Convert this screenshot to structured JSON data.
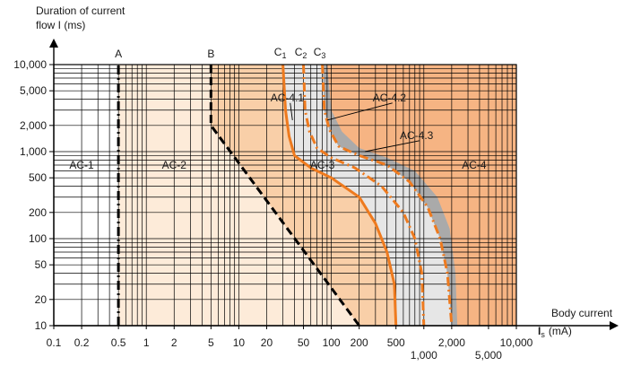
{
  "chart_data": {
    "type": "line",
    "xscale": "log",
    "yscale": "log",
    "xlim": [
      0.1,
      10000
    ],
    "ylim": [
      10,
      10000
    ],
    "ylabel": [
      "Duration of current",
      "flow I (ms)"
    ],
    "xlabel": [
      "Body current",
      "I",
      "s",
      "(mA)"
    ],
    "x_ticks": [
      {
        "value": 0.1,
        "label": "0.1",
        "row": 0
      },
      {
        "value": 0.2,
        "label": "0.2",
        "row": 0
      },
      {
        "value": 0.5,
        "label": "0.5",
        "row": 0
      },
      {
        "value": 1,
        "label": "1",
        "row": 0
      },
      {
        "value": 2,
        "label": "2",
        "row": 0
      },
      {
        "value": 5,
        "label": "5",
        "row": 0
      },
      {
        "value": 10,
        "label": "10",
        "row": 0
      },
      {
        "value": 20,
        "label": "20",
        "row": 0
      },
      {
        "value": 50,
        "label": "50",
        "row": 0
      },
      {
        "value": 100,
        "label": "100",
        "row": 0
      },
      {
        "value": 200,
        "label": "200",
        "row": 0
      },
      {
        "value": 500,
        "label": "500",
        "row": 0
      },
      {
        "value": 1000,
        "label": "1,000",
        "row": 1
      },
      {
        "value": 2000,
        "label": "2,000",
        "row": 0
      },
      {
        "value": 5000,
        "label": "5,000",
        "row": 1
      },
      {
        "value": 10000,
        "label": "10,000",
        "row": 0
      }
    ],
    "y_ticks": [
      {
        "value": 10,
        "label": "10"
      },
      {
        "value": 20,
        "label": "20"
      },
      {
        "value": 50,
        "label": "50"
      },
      {
        "value": 100,
        "label": "100"
      },
      {
        "value": 200,
        "label": "200"
      },
      {
        "value": 500,
        "label": "500"
      },
      {
        "value": 1000,
        "label": "1,000"
      },
      {
        "value": 2000,
        "label": "2,000"
      },
      {
        "value": 5000,
        "label": "5,000"
      },
      {
        "value": 10000,
        "label": "10,000"
      }
    ],
    "zones": [
      {
        "label": "AC-1",
        "x": 0.2,
        "y": 700,
        "color": "#ffffff"
      },
      {
        "label": "AC-2",
        "x": 2,
        "y": 700,
        "color": "#fdebd9"
      },
      {
        "label": "AC-3",
        "x": 80,
        "y": 700,
        "color": "#f9cfa8"
      },
      {
        "label": "AC-4",
        "x": 3500,
        "y": 700,
        "color": "#f6b483"
      }
    ],
    "series": [
      {
        "name": "A",
        "color": "#000000",
        "dash": "dashdot",
        "points": [
          [
            0.5,
            10
          ],
          [
            0.5,
            10000
          ]
        ]
      },
      {
        "name": "B",
        "color": "#000000",
        "dash": "dashed",
        "points": [
          [
            5,
            10000
          ],
          [
            5,
            2000
          ],
          [
            200,
            10
          ]
        ]
      },
      {
        "name": "C1",
        "color": "#ee7a1e",
        "dash": "solid",
        "points": [
          [
            30,
            10000
          ],
          [
            32,
            3000
          ],
          [
            35,
            1500
          ],
          [
            40,
            900
          ],
          [
            60,
            650
          ],
          [
            100,
            500
          ],
          [
            200,
            300
          ],
          [
            300,
            150
          ],
          [
            400,
            70
          ],
          [
            480,
            30
          ],
          [
            500,
            10
          ]
        ]
      },
      {
        "name": "C2",
        "color": "#ee7a1e",
        "dash": "dashdot",
        "points": [
          [
            50,
            10000
          ],
          [
            52,
            3000
          ],
          [
            58,
            1700
          ],
          [
            70,
            1100
          ],
          [
            100,
            850
          ],
          [
            180,
            650
          ],
          [
            350,
            400
          ],
          [
            600,
            200
          ],
          [
            800,
            100
          ],
          [
            950,
            40
          ],
          [
            1000,
            10
          ]
        ]
      },
      {
        "name": "C3",
        "color": "#ee7a1e",
        "dash": "dashdot",
        "points": [
          [
            80,
            10000
          ],
          [
            84,
            3000
          ],
          [
            95,
            1800
          ],
          [
            120,
            1150
          ],
          [
            200,
            900
          ],
          [
            400,
            700
          ],
          [
            700,
            450
          ],
          [
            1100,
            230
          ],
          [
            1500,
            100
          ],
          [
            1800,
            40
          ],
          [
            2000,
            10
          ]
        ]
      },
      {
        "name": "",
        "color": "#aaaaaa",
        "dash": "band",
        "points": [
          [
            90,
            10000
          ],
          [
            100,
            3000
          ],
          [
            130,
            1700
          ],
          [
            200,
            1100
          ],
          [
            400,
            850
          ],
          [
            800,
            600
          ],
          [
            1400,
            300
          ],
          [
            1900,
            130
          ],
          [
            2200,
            40
          ],
          [
            2300,
            10
          ]
        ]
      }
    ],
    "curve_labels": [
      {
        "name": "C",
        "sub": "1",
        "x": 30
      },
      {
        "name": "C",
        "sub": "2",
        "x": 50
      },
      {
        "name": "C",
        "sub": "3",
        "x": 80
      }
    ],
    "line_labels": [
      {
        "name": "A",
        "x": 0.5
      },
      {
        "name": "B",
        "x": 5
      }
    ],
    "annotations": [
      {
        "text": "AC-4.1",
        "x": 22,
        "y": 3800,
        "tx": 38,
        "ty": 2300
      },
      {
        "text": "AC-4.2",
        "x": 280,
        "y": 3800,
        "tx": 90,
        "ty": 2300
      },
      {
        "text": "AC-4.3",
        "x": 550,
        "y": 1400,
        "tx": 230,
        "ty": 1000
      }
    ],
    "grid": true
  }
}
